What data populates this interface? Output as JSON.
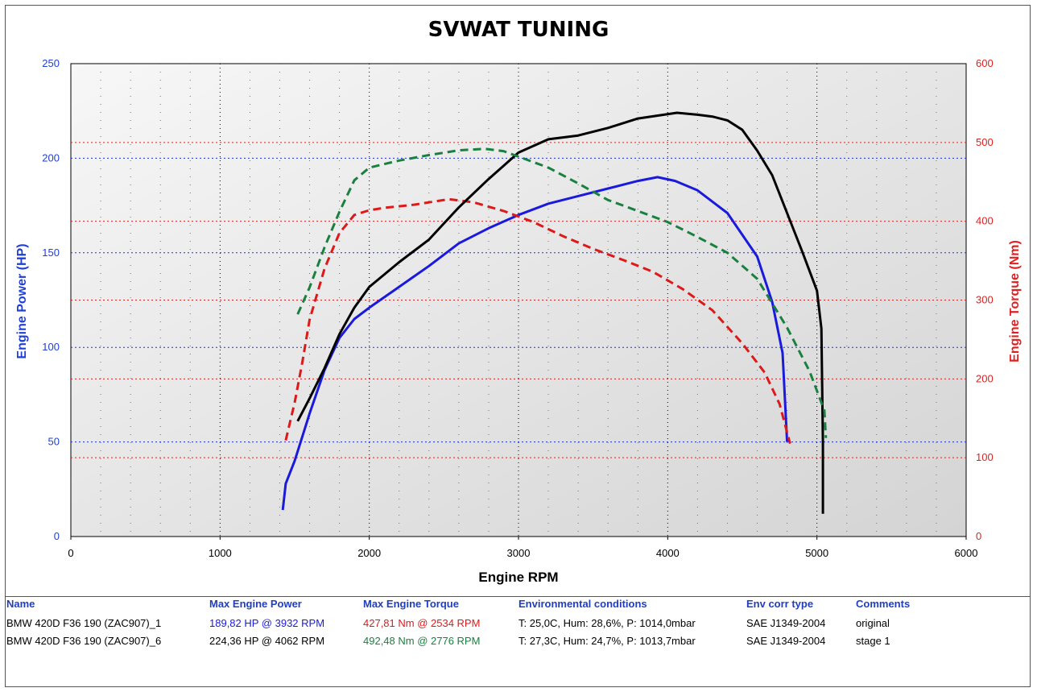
{
  "chart_data": {
    "type": "line",
    "title": "SVWAT TUNING",
    "xlabel": "Engine RPM",
    "ylabel_left": "Engine Power (HP)",
    "ylabel_right": "Engine Torque (Nm)",
    "xlim": [
      0,
      6000
    ],
    "ylim_left": [
      0,
      250
    ],
    "ylim_right": [
      0,
      600
    ],
    "x_ticks": [
      "0",
      "1000",
      "2000",
      "3000",
      "4000",
      "5000",
      "6000"
    ],
    "y_left_ticks": [
      "0",
      "50",
      "100",
      "150",
      "200",
      "250"
    ],
    "y_right_ticks": [
      "0",
      "100",
      "200",
      "300",
      "400",
      "500",
      "600"
    ],
    "grid": true,
    "series": [
      {
        "name": "BMW 420D F36 190 (ZAC907)_1",
        "quantity": "power",
        "axis": "left",
        "color": "#1a1adc",
        "dash": "solid",
        "points": [
          [
            1420,
            14
          ],
          [
            1440,
            28
          ],
          [
            1500,
            40
          ],
          [
            1600,
            65
          ],
          [
            1700,
            88
          ],
          [
            1800,
            105
          ],
          [
            1900,
            115
          ],
          [
            2000,
            121
          ],
          [
            2200,
            132
          ],
          [
            2400,
            143
          ],
          [
            2600,
            155
          ],
          [
            2800,
            163
          ],
          [
            3000,
            170
          ],
          [
            3200,
            176
          ],
          [
            3400,
            180
          ],
          [
            3600,
            184
          ],
          [
            3800,
            188
          ],
          [
            3932,
            190
          ],
          [
            4050,
            188
          ],
          [
            4200,
            183
          ],
          [
            4400,
            171
          ],
          [
            4600,
            148
          ],
          [
            4700,
            124
          ],
          [
            4770,
            97
          ],
          [
            4800,
            50
          ]
        ]
      },
      {
        "name": "BMW 420D F36 190 (ZAC907)_1",
        "quantity": "torque",
        "axis": "right",
        "color": "#dc1a1a",
        "dash": "dashed",
        "points": [
          [
            1440,
            122
          ],
          [
            1500,
            170
          ],
          [
            1550,
            220
          ],
          [
            1600,
            275
          ],
          [
            1700,
            340
          ],
          [
            1800,
            385
          ],
          [
            1900,
            408
          ],
          [
            2000,
            414
          ],
          [
            2100,
            417
          ],
          [
            2300,
            421
          ],
          [
            2534,
            428
          ],
          [
            2700,
            424
          ],
          [
            2900,
            413
          ],
          [
            3100,
            399
          ],
          [
            3300,
            381
          ],
          [
            3500,
            365
          ],
          [
            3700,
            351
          ],
          [
            3900,
            336
          ],
          [
            4100,
            314
          ],
          [
            4300,
            287
          ],
          [
            4500,
            245
          ],
          [
            4650,
            208
          ],
          [
            4750,
            168
          ],
          [
            4820,
            118
          ]
        ]
      },
      {
        "name": "BMW 420D F36 190 (ZAC907)_6",
        "quantity": "power",
        "axis": "left",
        "color": "#000000",
        "dash": "solid",
        "points": [
          [
            1520,
            61
          ],
          [
            1600,
            73
          ],
          [
            1700,
            89
          ],
          [
            1800,
            107
          ],
          [
            1900,
            121
          ],
          [
            2000,
            132
          ],
          [
            2200,
            145
          ],
          [
            2400,
            157
          ],
          [
            2600,
            174
          ],
          [
            2800,
            189
          ],
          [
            3000,
            203
          ],
          [
            3200,
            210
          ],
          [
            3400,
            212
          ],
          [
            3600,
            216
          ],
          [
            3800,
            221
          ],
          [
            4062,
            224
          ],
          [
            4200,
            223
          ],
          [
            4300,
            222
          ],
          [
            4400,
            220
          ],
          [
            4500,
            215
          ],
          [
            4600,
            204
          ],
          [
            4700,
            191
          ],
          [
            4800,
            171
          ],
          [
            4900,
            151
          ],
          [
            5000,
            130
          ],
          [
            5030,
            110
          ],
          [
            5040,
            50
          ],
          [
            5040,
            12
          ]
        ]
      },
      {
        "name": "BMW 420D F36 190 (ZAC907)_6",
        "quantity": "torque",
        "axis": "right",
        "color": "#1a8040",
        "dash": "dashed",
        "points": [
          [
            1520,
            282
          ],
          [
            1600,
            316
          ],
          [
            1700,
            367
          ],
          [
            1800,
            412
          ],
          [
            1900,
            452
          ],
          [
            2000,
            468
          ],
          [
            2200,
            477
          ],
          [
            2400,
            484
          ],
          [
            2600,
            490
          ],
          [
            2776,
            492
          ],
          [
            2900,
            489
          ],
          [
            3000,
            482
          ],
          [
            3200,
            468
          ],
          [
            3400,
            448
          ],
          [
            3600,
            427
          ],
          [
            3800,
            413
          ],
          [
            4000,
            399
          ],
          [
            4200,
            380
          ],
          [
            4400,
            360
          ],
          [
            4600,
            327
          ],
          [
            4800,
            265
          ],
          [
            4950,
            210
          ],
          [
            5050,
            160
          ],
          [
            5060,
            125
          ]
        ]
      }
    ]
  },
  "results_table": {
    "headers": {
      "name": "Name",
      "power": "Max Engine Power",
      "torque": "Max Engine Torque",
      "env": "Environmental conditions",
      "corr": "Env corr type",
      "comments": "Comments"
    },
    "rows": [
      {
        "name": "BMW 420D F36 190 (ZAC907)_1",
        "power": "189,82 HP @ 3932 RPM",
        "power_color": "#1a1adc",
        "torque": "427,81 Nm @ 2534 RPM",
        "torque_color": "#dc1a1a",
        "env": "T: 25,0C, Hum: 28,6%, P: 1014,0mbar",
        "corr": "SAE J1349-2004",
        "comments": "original"
      },
      {
        "name": "BMW 420D F36 190 (ZAC907)_6",
        "power": "224,36 HP @ 4062 RPM",
        "power_color": "#000000",
        "torque": "492,48 Nm @ 2776 RPM",
        "torque_color": "#1a8040",
        "env": "T: 27,3C, Hum: 24,7%, P: 1013,7mbar",
        "corr": "SAE J1349-2004",
        "comments": "stage 1"
      }
    ]
  }
}
